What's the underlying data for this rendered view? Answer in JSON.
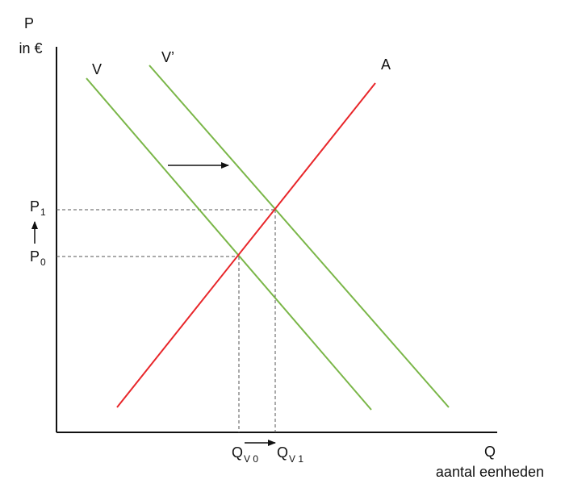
{
  "axes": {
    "y_label": "P",
    "y_unit": "in €",
    "x_label": "Q",
    "x_unit": "aantal eenheden"
  },
  "curves": {
    "demand": {
      "label": "V",
      "color": "#7ab648"
    },
    "demand_shifted": {
      "label": "V’",
      "color": "#7ab648"
    },
    "supply": {
      "label": "A",
      "color": "#e8262a"
    }
  },
  "prices": {
    "p0": {
      "main": "P",
      "sub": "0"
    },
    "p1": {
      "main": "P",
      "sub": "1"
    }
  },
  "quantities": {
    "q0": {
      "main": "Q",
      "sub": "V 0"
    },
    "q1": {
      "main": "Q",
      "sub": "V 1"
    }
  },
  "colors": {
    "axis": "#111111",
    "guide": "#555555",
    "arrow": "#111111"
  }
}
